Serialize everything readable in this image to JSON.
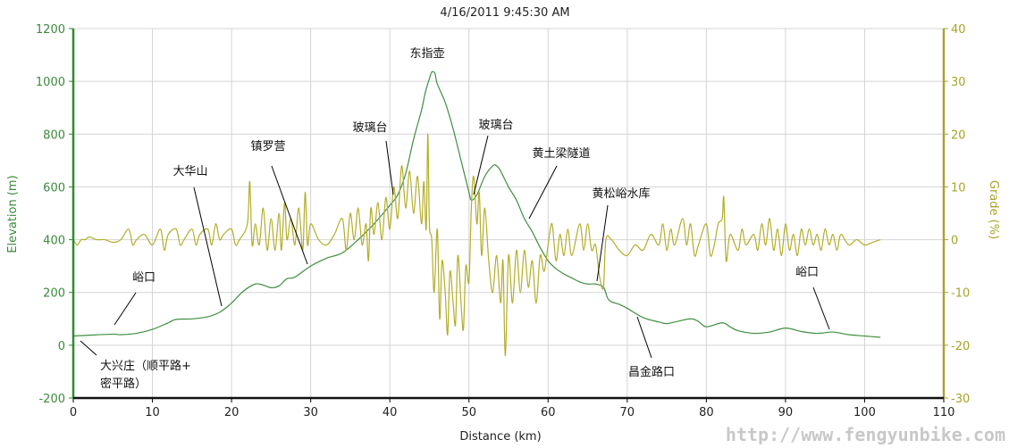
{
  "chart_data": {
    "type": "line",
    "title": "4/16/2011 9:45:30 AM",
    "xlabel": "Distance (km)",
    "ylabel": "Elevation (m)",
    "y2label": "Grade (%)",
    "xlim": [
      0,
      110
    ],
    "ylim": [
      -200,
      1200
    ],
    "y2lim": [
      -30,
      40
    ],
    "xticks": [
      "0",
      "10",
      "20",
      "30",
      "40",
      "50",
      "60",
      "70",
      "80",
      "90",
      "100",
      "110"
    ],
    "yticks": [
      "-200",
      "0",
      "200",
      "400",
      "600",
      "800",
      "1000",
      "1200"
    ],
    "y2ticks": [
      "-30",
      "-20",
      "-10",
      "0",
      "10",
      "20",
      "30",
      "40"
    ],
    "grid": true,
    "colors": {
      "elevation": "#3f8f3f",
      "grade": "#b3ad2a",
      "left_axis": "#2e8b2e",
      "right_axis": "#aaa235",
      "grid": "#d4d4d4"
    },
    "series": [
      {
        "axis": "left",
        "x": [
          0,
          2,
          5,
          6,
          8,
          10,
          12,
          13,
          15,
          17,
          18.5,
          20,
          21.5,
          23,
          24,
          25,
          26,
          27,
          28,
          30,
          32,
          34,
          36,
          38,
          40,
          41,
          42,
          43,
          44,
          44.5,
          45,
          45.3,
          45.7,
          46,
          47,
          48,
          49,
          50,
          50.3,
          51,
          52,
          53,
          53.5,
          54,
          55,
          56,
          57,
          58,
          59,
          60,
          61,
          62,
          63,
          64,
          65,
          66,
          67,
          67.5,
          68,
          69,
          70,
          72,
          74,
          75,
          76,
          78,
          79,
          80,
          82,
          83,
          84,
          86,
          88,
          90,
          92,
          94,
          96,
          98,
          100,
          102
        ],
        "y": [
          35,
          38,
          42,
          40,
          45,
          60,
          85,
          98,
          100,
          108,
          125,
          160,
          205,
          232,
          228,
          218,
          225,
          252,
          258,
          300,
          330,
          350,
          400,
          460,
          530,
          570,
          650,
          780,
          890,
          960,
          1010,
          1035,
          1030,
          990,
          920,
          820,
          700,
          580,
          550,
          570,
          640,
          680,
          680,
          660,
          600,
          550,
          480,
          430,
          370,
          320,
          290,
          270,
          255,
          240,
          232,
          232,
          220,
          180,
          165,
          155,
          140,
          105,
          88,
          82,
          88,
          100,
          90,
          70,
          85,
          70,
          55,
          45,
          50,
          65,
          52,
          45,
          50,
          40,
          35,
          30
        ]
      },
      {
        "axis": "right",
        "x": [
          0,
          0.5,
          1,
          1.5,
          2,
          3,
          4,
          5,
          6,
          7,
          7.5,
          8,
          9,
          10,
          11,
          11.5,
          12,
          13,
          13.5,
          14,
          15,
          15.5,
          16,
          17,
          17.5,
          18,
          18.5,
          19,
          20,
          20.5,
          21,
          22,
          22.3,
          22.6,
          23,
          23.5,
          24,
          24.5,
          25,
          25.5,
          26,
          26.3,
          26.7,
          27,
          27.5,
          28,
          28.5,
          29,
          29.3,
          29.6,
          30,
          31,
          32,
          33,
          34,
          34.5,
          35,
          35.5,
          36,
          36.5,
          37,
          37.3,
          37.6,
          38,
          38.5,
          39,
          39.5,
          40,
          40.5,
          41,
          41.5,
          42,
          42.5,
          43,
          43.5,
          44,
          44.3,
          44.6,
          44.8,
          45,
          45.3,
          45.6,
          46,
          46.3,
          46.6,
          47,
          47.3,
          47.6,
          48,
          48.3,
          48.6,
          49,
          49.3,
          49.6,
          50,
          50.3,
          50.6,
          51,
          51.3,
          51.6,
          52,
          52.5,
          53,
          53.5,
          54,
          54.3,
          54.6,
          55,
          55.5,
          56,
          56.5,
          57,
          57.5,
          58,
          58.5,
          59,
          59.5,
          60,
          60.5,
          61,
          61.5,
          62,
          62.5,
          63,
          64,
          64.5,
          65,
          65.5,
          66,
          66.5,
          67,
          67.3,
          68,
          69,
          70,
          71,
          72,
          73,
          74,
          74.5,
          75,
          75.5,
          76,
          77,
          77.5,
          78,
          78.5,
          79,
          80,
          80.5,
          81,
          81.5,
          82,
          82.2,
          82.5,
          83,
          84,
          84.5,
          85,
          86,
          86.5,
          87,
          87.5,
          88,
          88.5,
          89,
          89.5,
          90,
          90.5,
          91,
          91.5,
          92,
          92.5,
          93,
          93.5,
          94,
          94.5,
          95,
          95.5,
          96,
          96.5,
          97,
          98,
          99,
          100,
          101,
          102
        ],
        "y": [
          0,
          -1,
          0,
          0,
          0.5,
          0,
          0,
          -0.5,
          0,
          2,
          -1,
          0,
          1,
          -1,
          2,
          -2,
          1,
          2,
          -1,
          0,
          2,
          -1,
          1,
          2,
          -1,
          3,
          0,
          1,
          2,
          -1,
          0,
          3,
          11,
          -1,
          3,
          -1,
          6,
          -2,
          4,
          -2,
          5,
          -2,
          7,
          0,
          4,
          -1,
          6,
          -2,
          9,
          -1,
          3,
          0,
          -1,
          1,
          4,
          -2,
          5,
          0,
          6,
          -1,
          3,
          -4,
          6,
          1,
          7,
          0,
          8,
          2,
          10,
          4,
          14,
          6,
          13,
          5,
          12,
          3,
          11,
          2,
          20,
          3,
          0,
          -10,
          2,
          -15,
          -4,
          -10,
          -18,
          -6,
          -12,
          -16,
          -3,
          -12,
          -17,
          -5,
          -8,
          6,
          12,
          3,
          9,
          -3,
          6,
          -4,
          -10,
          -3,
          -12,
          -4,
          -22,
          -3,
          -12,
          -2,
          -10,
          -2,
          -9,
          -4,
          -12,
          -3,
          -6,
          -1,
          3,
          -4,
          1,
          -3,
          2,
          -3,
          3,
          -2,
          3,
          -2,
          -1,
          -7,
          -9,
          0,
          0,
          -2,
          -3,
          -1,
          -2,
          1,
          -1,
          3,
          -2,
          2,
          -1,
          4,
          -1,
          3,
          -3,
          -1,
          3,
          -3,
          -1,
          3,
          4,
          8,
          -4,
          1,
          -2,
          2,
          -1,
          1,
          -2,
          3,
          -1,
          4,
          -2,
          2,
          -3,
          3,
          -2,
          1,
          -3,
          2,
          -1,
          2,
          -1,
          1,
          -2,
          2,
          -1,
          1,
          -2,
          1,
          -1,
          0,
          -1,
          -0.5,
          0
        ]
      }
    ],
    "annotations": [
      "东指壶",
      "玻璃台",
      "玻璃台",
      "镇罗营",
      "大华山",
      "峪口",
      "大兴庄（顺平路+",
      "密平路）",
      "黄土梁隧道",
      "黄松峪水库",
      "峪口",
      "昌金路口"
    ]
  },
  "watermark": "http://www.fengyunbike.com"
}
